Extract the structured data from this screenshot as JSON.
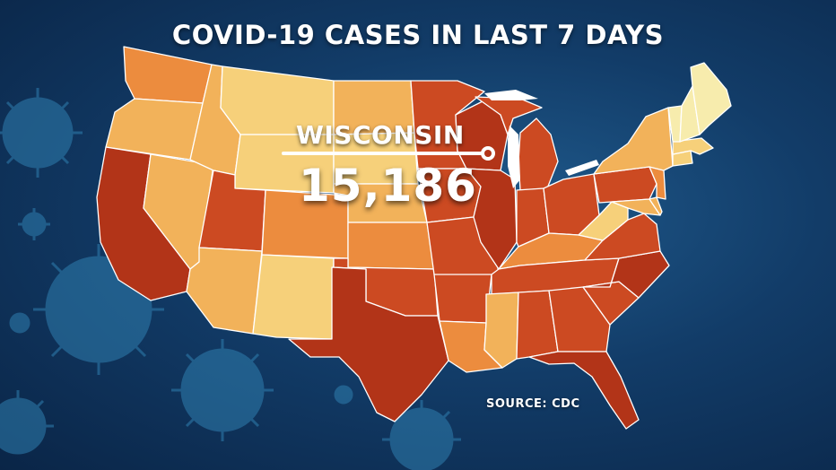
{
  "title": "COVID-19 CASES IN LAST 7 DAYS",
  "callout": {
    "state": "WISCONSIN",
    "value": "15,186"
  },
  "source": "SOURCE: CDC",
  "palette": {
    "background": "#123c68",
    "virus": "#2f7fb0",
    "lightest": "#f7ecad",
    "light": "#f6d07a",
    "mid_light": "#f2b25a",
    "mid": "#ec8c3e",
    "mid_dark": "#e36a2c",
    "dark": "#cc4a22",
    "darkest": "#b23418",
    "water": "#ffffff"
  },
  "states": [
    {
      "name": "Washington",
      "level": "mid"
    },
    {
      "name": "Oregon",
      "level": "mid_light"
    },
    {
      "name": "California",
      "level": "darkest"
    },
    {
      "name": "Nevada",
      "level": "mid_light"
    },
    {
      "name": "Idaho",
      "level": "mid_light"
    },
    {
      "name": "Montana",
      "level": "light"
    },
    {
      "name": "Wyoming",
      "level": "light"
    },
    {
      "name": "Utah",
      "level": "dark"
    },
    {
      "name": "Arizona",
      "level": "mid_light"
    },
    {
      "name": "Colorado",
      "level": "mid"
    },
    {
      "name": "New Mexico",
      "level": "light"
    },
    {
      "name": "North Dakota",
      "level": "mid_light"
    },
    {
      "name": "South Dakota",
      "level": "light"
    },
    {
      "name": "Nebraska",
      "level": "mid_light"
    },
    {
      "name": "Kansas",
      "level": "mid"
    },
    {
      "name": "Oklahoma",
      "level": "dark"
    },
    {
      "name": "Texas",
      "level": "darkest"
    },
    {
      "name": "Minnesota",
      "level": "dark"
    },
    {
      "name": "Iowa",
      "level": "dark"
    },
    {
      "name": "Missouri",
      "level": "dark"
    },
    {
      "name": "Arkansas",
      "level": "dark"
    },
    {
      "name": "Louisiana",
      "level": "mid"
    },
    {
      "name": "Wisconsin",
      "level": "darkest"
    },
    {
      "name": "Illinois",
      "level": "darkest"
    },
    {
      "name": "Michigan",
      "level": "dark"
    },
    {
      "name": "Indiana",
      "level": "dark"
    },
    {
      "name": "Ohio",
      "level": "dark"
    },
    {
      "name": "Kentucky",
      "level": "mid"
    },
    {
      "name": "Tennessee",
      "level": "dark"
    },
    {
      "name": "Mississippi",
      "level": "mid_light"
    },
    {
      "name": "Alabama",
      "level": "dark"
    },
    {
      "name": "Georgia",
      "level": "dark"
    },
    {
      "name": "Florida",
      "level": "darkest"
    },
    {
      "name": "South Carolina",
      "level": "dark"
    },
    {
      "name": "North Carolina",
      "level": "darkest"
    },
    {
      "name": "Virginia",
      "level": "dark"
    },
    {
      "name": "West Virginia",
      "level": "light"
    },
    {
      "name": "Pennsylvania",
      "level": "dark"
    },
    {
      "name": "New York",
      "level": "mid_light"
    },
    {
      "name": "Vermont",
      "level": "lightest"
    },
    {
      "name": "New Hampshire",
      "level": "lightest"
    },
    {
      "name": "Maine",
      "level": "lightest"
    },
    {
      "name": "Massachusetts",
      "level": "light"
    },
    {
      "name": "Connecticut",
      "level": "light"
    },
    {
      "name": "New Jersey",
      "level": "mid"
    },
    {
      "name": "Maryland",
      "level": "mid_light"
    },
    {
      "name": "Delaware",
      "level": "mid_light"
    }
  ]
}
